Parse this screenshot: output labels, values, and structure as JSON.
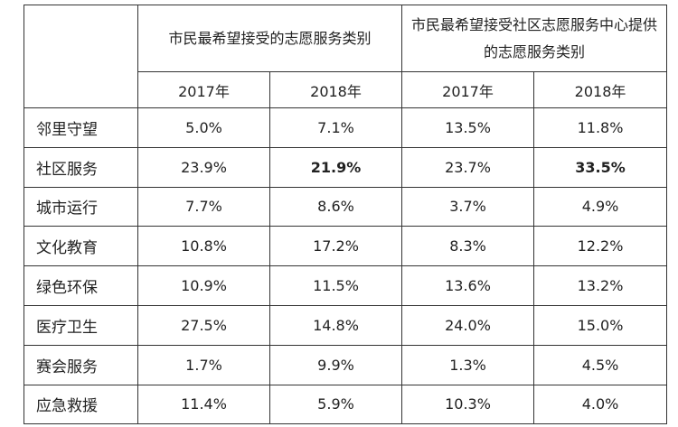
{
  "header": {
    "group1": "市民最希望接受的志愿服务类别",
    "group2": "市民最希望接受社区志愿服务中心提供的志愿服务类别",
    "years": [
      "2017年",
      "2018年",
      "2017年",
      "2018年"
    ]
  },
  "rows": [
    {
      "label": "邻里守望",
      "values": [
        "5.0%",
        "7.1%",
        "13.5%",
        "11.8%"
      ]
    },
    {
      "label": "社区服务",
      "values": [
        "23.9%",
        "21.9%",
        "23.7%",
        "33.5%"
      ]
    },
    {
      "label": "城市运行",
      "values": [
        "7.7%",
        "8.6%",
        "3.7%",
        "4.9%"
      ]
    },
    {
      "label": "文化教育",
      "values": [
        "10.8%",
        "17.2%",
        "8.3%",
        "12.2%"
      ]
    },
    {
      "label": "绿色环保",
      "values": [
        "10.9%",
        "11.5%",
        "13.6%",
        "13.2%"
      ]
    },
    {
      "label": "医疗卫生",
      "values": [
        "27.5%",
        "14.8%",
        "24.0%",
        "15.0%"
      ]
    },
    {
      "label": "赛会服务",
      "values": [
        "1.7%",
        "9.9%",
        "1.3%",
        "4.5%"
      ]
    },
    {
      "label": "应急救援",
      "values": [
        "11.4%",
        "5.9%",
        "10.3%",
        "4.0%"
      ]
    }
  ]
}
